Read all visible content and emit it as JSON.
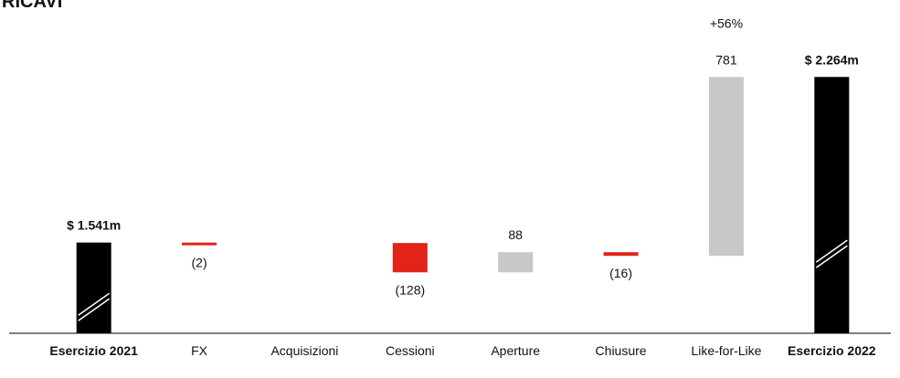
{
  "chart_data": {
    "type": "waterfall",
    "title": "RICAVI",
    "categories": [
      "Esercizio 2021",
      "FX",
      "Acquisizioni",
      "Cessioni",
      "Aperture",
      "Chiusure",
      "Like-for-Like",
      "Esercizio 2022"
    ],
    "measures": [
      "total",
      "relative",
      "relative",
      "relative",
      "relative",
      "relative",
      "relative",
      "total"
    ],
    "values": [
      1541,
      -2,
      null,
      -128,
      88,
      -16,
      781,
      2264
    ],
    "value_labels": [
      "$ 1.541m",
      "(2)",
      null,
      "(128)",
      "88",
      "(16)",
      "781",
      "$ 2.264m"
    ],
    "colors": {
      "total": "#000000",
      "increase": "#c8c8c8",
      "decrease": "#e2231a"
    },
    "ylim": [
      1145,
      2600
    ],
    "axis_break": true,
    "annotations": [
      {
        "text": "+56%",
        "x": "Like-for-Like"
      }
    ]
  }
}
